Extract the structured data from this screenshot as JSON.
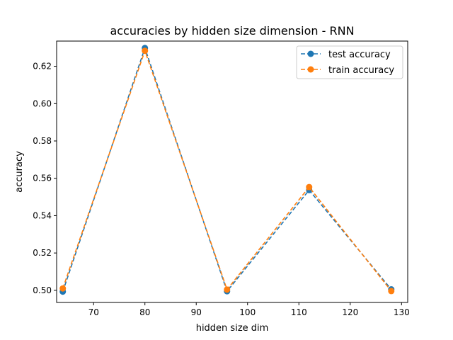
{
  "chart_data": {
    "type": "line",
    "title": "accuracies by hidden size dimension - RNN",
    "xlabel": "hidden size dim",
    "ylabel": "accuracy",
    "xlim": [
      62.8,
      131.2
    ],
    "ylim": [
      0.4935,
      0.6335
    ],
    "xticks": [
      70,
      80,
      90,
      100,
      110,
      120,
      130
    ],
    "yticks": [
      0.5,
      0.52,
      0.54,
      0.56,
      0.58,
      0.6,
      0.62
    ],
    "ytick_labels": [
      "0.50",
      "0.52",
      "0.54",
      "0.56",
      "0.58",
      "0.60",
      "0.62"
    ],
    "grid": false,
    "legend_position": "top-right",
    "x": [
      64,
      80,
      96,
      112,
      128
    ],
    "series": [
      {
        "name": "test accuracy",
        "values": [
          0.4993,
          0.6298,
          0.4995,
          0.5537,
          0.5005
        ],
        "color": "#1f77b4",
        "linestyle": "dashed",
        "marker": "circle"
      },
      {
        "name": "train accuracy",
        "values": [
          0.501,
          0.6283,
          0.5004,
          0.5553,
          0.4996
        ],
        "color": "#ff7f0e",
        "linestyle": "dashed",
        "marker": "circle"
      }
    ]
  }
}
